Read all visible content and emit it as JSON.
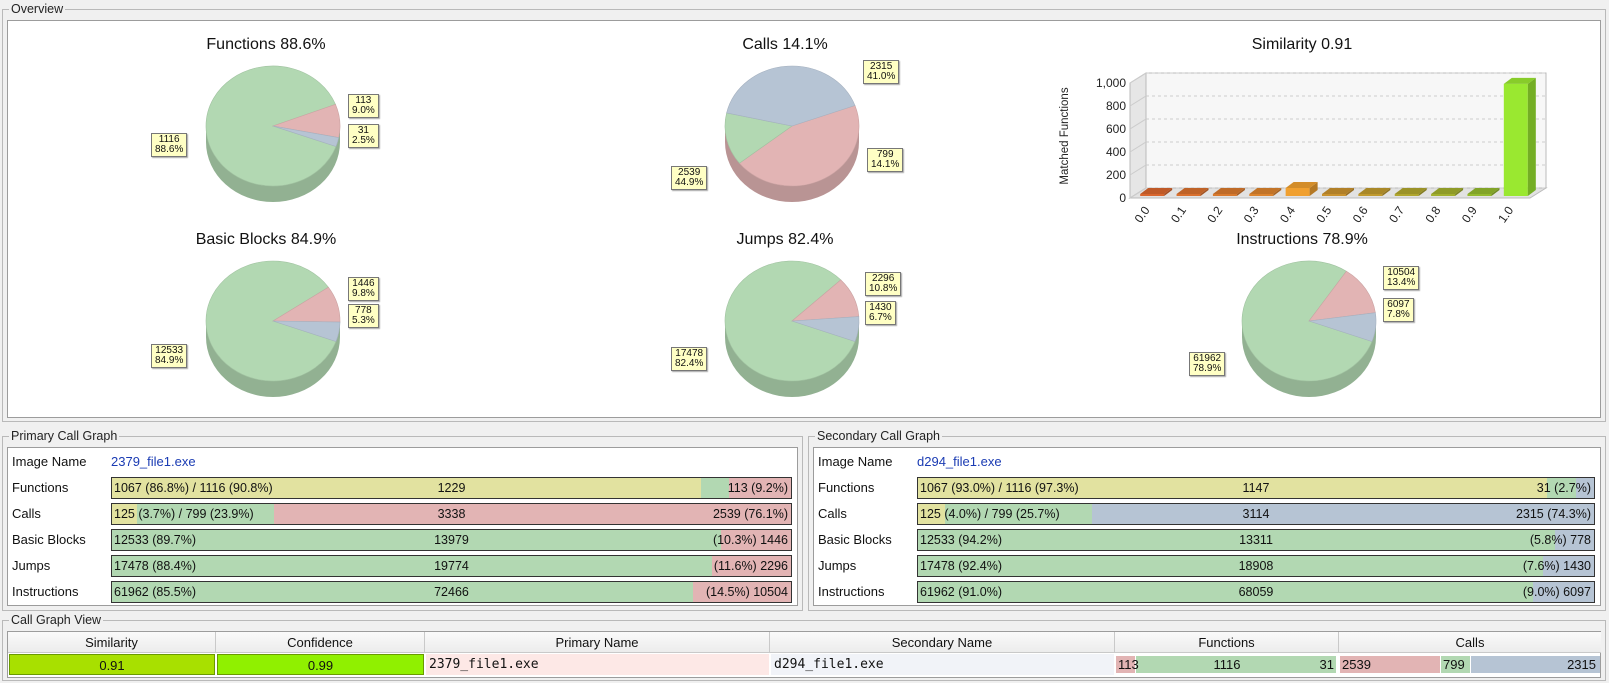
{
  "overview": {
    "title": "Overview",
    "pies": [
      {
        "title": "Functions 88.6%",
        "slices": [
          {
            "value": 1116,
            "pct": "88.6%",
            "color": "#b2d8b2"
          },
          {
            "value": 113,
            "pct": "9.0%",
            "color": "#e2b4b4"
          },
          {
            "value": 31,
            "pct": "2.5%",
            "color": "#b6c4d4"
          }
        ]
      },
      {
        "title": "Calls 14.1%",
        "slices": [
          {
            "value": 2539,
            "pct": "44.9%",
            "color": "#e2b4b4"
          },
          {
            "value": 799,
            "pct": "14.1%",
            "color": "#b2d8b2"
          },
          {
            "value": 2315,
            "pct": "41.0%",
            "color": "#b6c4d4"
          }
        ]
      },
      {
        "title": "Basic Blocks 84.9%",
        "slices": [
          {
            "value": 12533,
            "pct": "84.9%",
            "color": "#b2d8b2"
          },
          {
            "value": 1446,
            "pct": "9.8%",
            "color": "#e2b4b4"
          },
          {
            "value": 778,
            "pct": "5.3%",
            "color": "#b6c4d4"
          }
        ]
      },
      {
        "title": "Jumps 82.4%",
        "slices": [
          {
            "value": 17478,
            "pct": "82.4%",
            "color": "#b2d8b2"
          },
          {
            "value": 2296,
            "pct": "10.8%",
            "color": "#e2b4b4"
          },
          {
            "value": 1430,
            "pct": "6.7%",
            "color": "#b6c4d4"
          }
        ]
      },
      {
        "title": "Instructions 78.9%",
        "slices": [
          {
            "value": 61962,
            "pct": "78.9%",
            "color": "#b2d8b2"
          },
          {
            "value": 10504,
            "pct": "13.4%",
            "color": "#e2b4b4"
          },
          {
            "value": 6097,
            "pct": "7.8%",
            "color": "#b6c4d4"
          }
        ]
      }
    ],
    "similarity_chart": {
      "title": "Similarity 0.91",
      "ylabel": "Matched Functions",
      "yticks": [
        "1,000",
        "800",
        "600",
        "400",
        "200",
        "0"
      ]
    }
  },
  "chart_data": {
    "type": "bar",
    "title": "Similarity 0.91",
    "xlabel": "",
    "ylabel": "Matched Functions",
    "categories": [
      "0.0",
      "0.1",
      "0.2",
      "0.3",
      "0.4",
      "0.5",
      "0.6",
      "0.7",
      "0.8",
      "0.9",
      "1.0"
    ],
    "values": [
      4,
      4,
      4,
      4,
      70,
      4,
      4,
      4,
      4,
      4,
      975
    ],
    "ylim": [
      0,
      1000
    ],
    "grid": true,
    "colors": [
      "#d9662e",
      "#d9702e",
      "#d97a2e",
      "#dc842e",
      "#f0a030",
      "#c9922e",
      "#c09a2e",
      "#b0a62e",
      "#a2b02e",
      "#94ba2e",
      "#9ae830"
    ]
  },
  "primary": {
    "title": "Primary Call Graph",
    "image_label": "Image Name",
    "image_name": "2379_file1.exe",
    "rows": [
      {
        "label": "Functions",
        "left": "1067 (86.8%) / 1116 (90.8%)",
        "center": "1229",
        "right": "113 (9.2%)"
      },
      {
        "label": "Calls",
        "left": "125 (3.7%) / 799 (23.9%)",
        "center": "3338",
        "right": "2539 (76.1%)"
      },
      {
        "label": "Basic Blocks",
        "left": "12533 (89.7%)",
        "center": "13979",
        "right": "(10.3%) 1446"
      },
      {
        "label": "Jumps",
        "left": "17478 (88.4%)",
        "center": "19774",
        "right": "(11.6%) 2296"
      },
      {
        "label": "Instructions",
        "left": "61962 (85.5%)",
        "center": "72466",
        "right": "(14.5%) 10504"
      }
    ]
  },
  "secondary": {
    "title": "Secondary Call Graph",
    "image_label": "Image Name",
    "image_name": "d294_file1.exe",
    "rows": [
      {
        "label": "Functions",
        "left": "1067 (93.0%) / 1116 (97.3%)",
        "center": "1147",
        "right": "31 (2.7%)"
      },
      {
        "label": "Calls",
        "left": "125 (4.0%) / 799 (25.7%)",
        "center": "3114",
        "right": "2315 (74.3%)"
      },
      {
        "label": "Basic Blocks",
        "left": "12533 (94.2%)",
        "center": "13311",
        "right": "(5.8%) 778"
      },
      {
        "label": "Jumps",
        "left": "17478 (92.4%)",
        "center": "18908",
        "right": "(7.6%) 1430"
      },
      {
        "label": "Instructions",
        "left": "61962 (91.0%)",
        "center": "68059",
        "right": "(9.0%) 6097"
      }
    ]
  },
  "call_graph_view": {
    "title": "Call Graph View",
    "columns": [
      "Similarity",
      "Confidence",
      "Primary Name",
      "Secondary Name",
      "Functions",
      "Calls"
    ],
    "row": {
      "similarity": "0.91",
      "confidence": "0.99",
      "primary_name": "2379_file1.exe",
      "secondary_name": "d294_file1.exe",
      "functions": {
        "left": "113",
        "center": "1116",
        "right": "31"
      },
      "calls": {
        "left": "2539",
        "center": "799",
        "right": "2315"
      }
    }
  },
  "colors": {
    "green": "#b2d8b2",
    "red": "#e2b4b4",
    "blue": "#b6c4d4",
    "yellow": "#e2e2a0",
    "lime": "#90e000",
    "tag": "#ffffc4"
  }
}
